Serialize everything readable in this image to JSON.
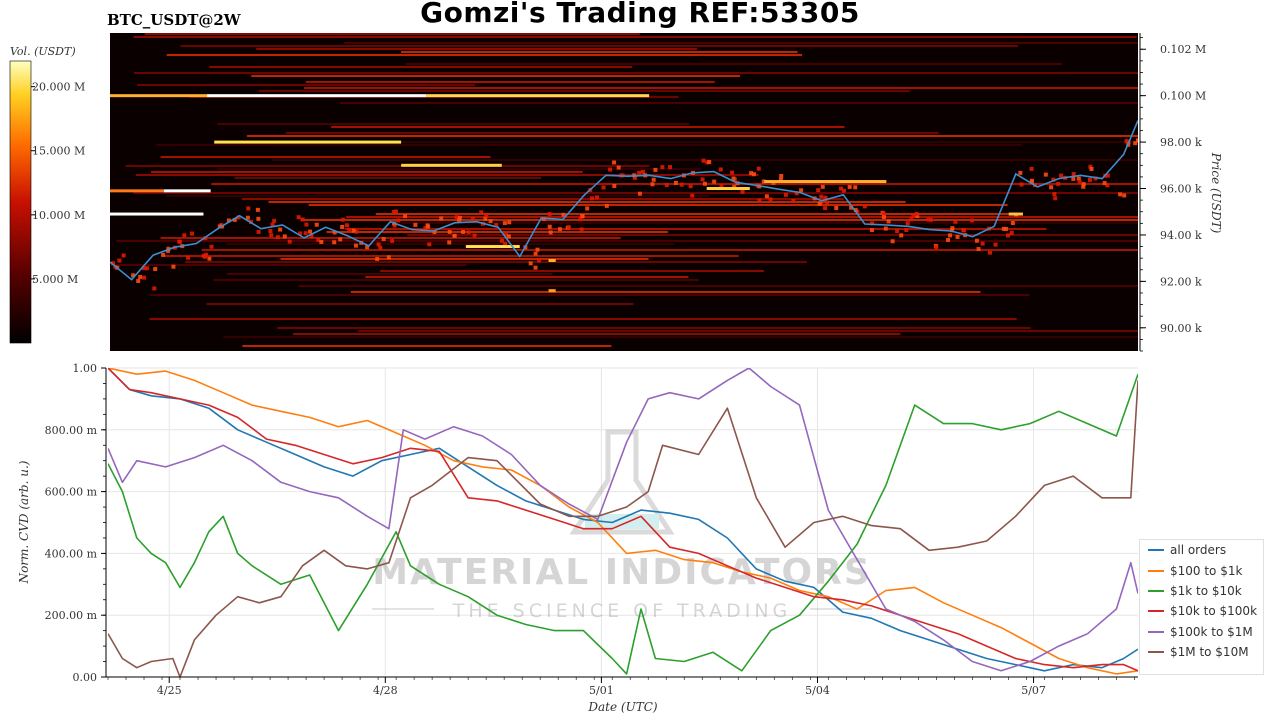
{
  "header": {
    "title": "Gomzi's Trading REF:53305",
    "ticker": "BTC_USDT@2W"
  },
  "colorbar": {
    "label": "Vol. (USDT)",
    "ticks": [
      "20.000 M",
      "15.000 M",
      "10.000 M",
      "5.000 M"
    ],
    "tick_values": [
      20,
      15,
      10,
      5
    ],
    "max": 22
  },
  "watermark": {
    "line1": "MATERIAL INDICATORS",
    "line2": "THE SCIENCE OF TRADING"
  },
  "chart_data": [
    {
      "type": "heatmap",
      "ylabel": "Price (USDT)",
      "ylim": [
        89000,
        102700
      ],
      "yticks": [
        {
          "value": 102000,
          "label": "0.102 M"
        },
        {
          "value": 100000,
          "label": "0.100 M"
        },
        {
          "value": 98000,
          "label": "98.00 k"
        },
        {
          "value": 96000,
          "label": "96.00 k"
        },
        {
          "value": 94000,
          "label": "94.00 k"
        },
        {
          "value": 92000,
          "label": "92.00 k"
        },
        {
          "value": 90000,
          "label": "90.00 k"
        }
      ],
      "xlim": [
        0,
        14.3
      ],
      "price_series": {
        "x": [
          0,
          0.3,
          0.6,
          0.9,
          1.2,
          1.5,
          1.8,
          2.1,
          2.4,
          2.7,
          3.0,
          3.3,
          3.6,
          3.9,
          4.2,
          4.5,
          4.8,
          5.1,
          5.4,
          5.7,
          6.0,
          6.3,
          6.6,
          6.9,
          7.2,
          7.5,
          7.8,
          8.1,
          8.4,
          8.7,
          9.0,
          9.3,
          9.6,
          9.9,
          10.2,
          10.5,
          10.8,
          11.1,
          11.4,
          11.7,
          12.0,
          12.3,
          12.6,
          12.9,
          13.2,
          13.5,
          13.8,
          14.1,
          14.3
        ],
        "y": [
          92700,
          92200,
          93000,
          93600,
          93500,
          94400,
          94700,
          94400,
          94300,
          94000,
          94200,
          94100,
          93400,
          94700,
          94100,
          94300,
          94400,
          94700,
          94200,
          93200,
          94600,
          94800,
          95600,
          96700,
          96400,
          96700,
          96300,
          96800,
          96600,
          96400,
          96000,
          96100,
          95700,
          95600,
          95600,
          94600,
          94300,
          94500,
          94100,
          94300,
          93800,
          94500,
          96500,
          96200,
          96300,
          96700,
          96300,
          97600,
          98800
        ]
      },
      "walls": [
        {
          "price": 100000,
          "x0": 0,
          "x1": 1.35,
          "color": "#ffb02e"
        },
        {
          "price": 100000,
          "x0": 1.35,
          "x1": 4.4,
          "color": "#ffffff"
        },
        {
          "price": 100000,
          "x0": 4.4,
          "x1": 7.5,
          "color": "#ffd84d"
        },
        {
          "price": 98000,
          "x0": 1.45,
          "x1": 4.05,
          "color": "#ffe24d"
        },
        {
          "price": 97000,
          "x0": 4.05,
          "x1": 5.45,
          "color": "#ffd040"
        },
        {
          "price": 96300,
          "x0": 9.1,
          "x1": 10.8,
          "color": "#ffb030"
        },
        {
          "price": 96000,
          "x0": 8.3,
          "x1": 8.9,
          "color": "#ffd040"
        },
        {
          "price": 95900,
          "x0": 0,
          "x1": 0.75,
          "color": "#ff7a1a"
        },
        {
          "price": 95900,
          "x0": 0.75,
          "x1": 1.4,
          "color": "#ffffff"
        },
        {
          "price": 94900,
          "x0": 0,
          "x1": 1.3,
          "color": "#ffffff"
        },
        {
          "price": 94900,
          "x0": 12.5,
          "x1": 12.7,
          "color": "#ffc040"
        },
        {
          "price": 93500,
          "x0": 4.95,
          "x1": 5.7,
          "color": "#ffe24d"
        },
        {
          "price": 92900,
          "x0": 6.1,
          "x1": 6.2,
          "color": "#ffb030"
        },
        {
          "price": 91600,
          "x0": 6.1,
          "x1": 6.2,
          "color": "#ff9a20"
        }
      ]
    },
    {
      "type": "line",
      "title": "",
      "xlabel": "Date (UTC)",
      "ylabel": "Norm. CVD (arb. u.)",
      "ylim": [
        0,
        1
      ],
      "xlim": [
        0,
        14.3
      ],
      "xticks": [
        {
          "value": 0.85,
          "label": "4/25"
        },
        {
          "value": 3.85,
          "label": "4/28"
        },
        {
          "value": 6.85,
          "label": "5/01"
        },
        {
          "value": 9.85,
          "label": "5/04"
        },
        {
          "value": 12.85,
          "label": "5/07"
        }
      ],
      "yticks": [
        {
          "value": 0,
          "label": "0.00"
        },
        {
          "value": 0.2,
          "label": "200.00 m"
        },
        {
          "value": 0.4,
          "label": "400.00 m"
        },
        {
          "value": 0.6,
          "label": "600.00 m"
        },
        {
          "value": 0.8,
          "label": "800.00 m"
        },
        {
          "value": 1,
          "label": "1.00"
        }
      ],
      "series": [
        {
          "name": "all orders",
          "color": "#1f77b4",
          "x": [
            0,
            0.3,
            0.6,
            1.0,
            1.4,
            1.8,
            2.2,
            2.6,
            3.0,
            3.4,
            3.8,
            4.2,
            4.6,
            5.0,
            5.4,
            5.8,
            6.2,
            6.6,
            7.0,
            7.4,
            7.8,
            8.2,
            8.6,
            9.0,
            9.4,
            9.8,
            10.2,
            10.6,
            11.0,
            11.4,
            11.8,
            12.2,
            12.6,
            13.0,
            13.4,
            13.8,
            14.1,
            14.3
          ],
          "y": [
            1.0,
            0.93,
            0.91,
            0.9,
            0.87,
            0.8,
            0.76,
            0.72,
            0.68,
            0.65,
            0.7,
            0.72,
            0.74,
            0.68,
            0.62,
            0.57,
            0.54,
            0.51,
            0.5,
            0.54,
            0.53,
            0.51,
            0.45,
            0.35,
            0.31,
            0.29,
            0.21,
            0.19,
            0.15,
            0.12,
            0.09,
            0.06,
            0.04,
            0.02,
            0.04,
            0.03,
            0.06,
            0.09
          ]
        },
        {
          "name": "$100 to $1k",
          "color": "#ff7f0e",
          "x": [
            0,
            0.4,
            0.8,
            1.2,
            1.6,
            2.0,
            2.4,
            2.8,
            3.2,
            3.6,
            4.0,
            4.4,
            4.8,
            5.2,
            5.6,
            6.0,
            6.4,
            6.8,
            7.2,
            7.6,
            8.0,
            8.4,
            8.8,
            9.2,
            9.6,
            10.0,
            10.4,
            10.8,
            11.2,
            11.6,
            12.0,
            12.4,
            12.8,
            13.2,
            13.6,
            14.0,
            14.3
          ],
          "y": [
            1.0,
            0.98,
            0.99,
            0.96,
            0.92,
            0.88,
            0.86,
            0.84,
            0.81,
            0.83,
            0.79,
            0.75,
            0.7,
            0.68,
            0.67,
            0.62,
            0.55,
            0.5,
            0.4,
            0.41,
            0.38,
            0.37,
            0.34,
            0.32,
            0.28,
            0.26,
            0.22,
            0.28,
            0.29,
            0.24,
            0.2,
            0.16,
            0.11,
            0.06,
            0.03,
            0.01,
            0.02
          ]
        },
        {
          "name": "$1k to $10k",
          "color": "#2ca02c",
          "x": [
            0,
            0.2,
            0.4,
            0.6,
            0.8,
            1.0,
            1.2,
            1.4,
            1.6,
            1.8,
            2.0,
            2.4,
            2.8,
            3.2,
            3.6,
            4.0,
            4.2,
            4.6,
            5.0,
            5.4,
            5.8,
            6.2,
            6.6,
            7.0,
            7.2,
            7.4,
            7.6,
            8.0,
            8.4,
            8.8,
            9.2,
            9.6,
            10.0,
            10.4,
            10.8,
            11.2,
            11.6,
            12.0,
            12.4,
            12.8,
            13.2,
            13.6,
            14.0,
            14.3
          ],
          "y": [
            0.69,
            0.6,
            0.45,
            0.4,
            0.37,
            0.29,
            0.37,
            0.47,
            0.52,
            0.4,
            0.36,
            0.3,
            0.33,
            0.15,
            0.3,
            0.47,
            0.36,
            0.3,
            0.26,
            0.2,
            0.17,
            0.15,
            0.15,
            0.06,
            0.01,
            0.22,
            0.06,
            0.05,
            0.08,
            0.02,
            0.15,
            0.2,
            0.31,
            0.43,
            0.62,
            0.88,
            0.82,
            0.82,
            0.8,
            0.82,
            0.86,
            0.82,
            0.78,
            0.98
          ]
        },
        {
          "name": "$10k to $100k",
          "color": "#d62728",
          "x": [
            0,
            0.3,
            0.6,
            1.0,
            1.4,
            1.8,
            2.2,
            2.6,
            3.0,
            3.4,
            3.8,
            4.2,
            4.6,
            5.0,
            5.4,
            5.8,
            6.2,
            6.6,
            7.0,
            7.4,
            7.8,
            8.2,
            8.6,
            9.0,
            9.4,
            9.8,
            10.2,
            10.6,
            11.0,
            11.4,
            11.8,
            12.2,
            12.6,
            13.0,
            13.4,
            13.8,
            14.1,
            14.3
          ],
          "y": [
            1.0,
            0.93,
            0.92,
            0.9,
            0.88,
            0.84,
            0.77,
            0.75,
            0.72,
            0.69,
            0.71,
            0.74,
            0.73,
            0.58,
            0.57,
            0.54,
            0.51,
            0.48,
            0.48,
            0.52,
            0.42,
            0.4,
            0.36,
            0.32,
            0.29,
            0.26,
            0.25,
            0.23,
            0.2,
            0.17,
            0.14,
            0.1,
            0.06,
            0.04,
            0.03,
            0.04,
            0.04,
            0.02
          ]
        },
        {
          "name": "$100k to $1M",
          "color": "#9467bd",
          "x": [
            0,
            0.2,
            0.4,
            0.8,
            1.2,
            1.6,
            2.0,
            2.4,
            2.8,
            3.2,
            3.6,
            3.9,
            4.1,
            4.4,
            4.8,
            5.2,
            5.6,
            6.0,
            6.4,
            6.8,
            7.2,
            7.5,
            7.8,
            8.2,
            8.6,
            8.9,
            9.2,
            9.6,
            10.0,
            10.4,
            10.8,
            11.2,
            11.6,
            12.0,
            12.4,
            12.8,
            13.2,
            13.6,
            14.0,
            14.2,
            14.3
          ],
          "y": [
            0.74,
            0.63,
            0.7,
            0.68,
            0.71,
            0.75,
            0.7,
            0.63,
            0.6,
            0.58,
            0.52,
            0.48,
            0.8,
            0.77,
            0.81,
            0.78,
            0.72,
            0.62,
            0.56,
            0.51,
            0.76,
            0.9,
            0.92,
            0.9,
            0.96,
            1.0,
            0.94,
            0.88,
            0.54,
            0.38,
            0.22,
            0.18,
            0.12,
            0.05,
            0.02,
            0.05,
            0.1,
            0.14,
            0.22,
            0.37,
            0.27
          ]
        },
        {
          "name": "$1M to $10M",
          "color": "#8c564b",
          "x": [
            0,
            0.2,
            0.4,
            0.6,
            0.9,
            1.0,
            1.2,
            1.5,
            1.8,
            2.1,
            2.4,
            2.7,
            3.0,
            3.3,
            3.6,
            3.9,
            4.2,
            4.5,
            5.0,
            5.4,
            6.0,
            6.4,
            6.8,
            7.2,
            7.5,
            7.7,
            8.2,
            8.6,
            9.0,
            9.4,
            9.8,
            10.2,
            10.6,
            11.0,
            11.4,
            11.8,
            12.2,
            12.6,
            13.0,
            13.4,
            13.8,
            14.2,
            14.3
          ],
          "y": [
            0.14,
            0.06,
            0.03,
            0.05,
            0.06,
            0.0,
            0.12,
            0.2,
            0.26,
            0.24,
            0.26,
            0.36,
            0.41,
            0.36,
            0.35,
            0.37,
            0.58,
            0.62,
            0.71,
            0.7,
            0.56,
            0.52,
            0.52,
            0.55,
            0.6,
            0.75,
            0.72,
            0.87,
            0.58,
            0.42,
            0.5,
            0.52,
            0.49,
            0.48,
            0.41,
            0.42,
            0.44,
            0.52,
            0.62,
            0.65,
            0.58,
            0.58,
            0.96
          ]
        }
      ]
    }
  ]
}
